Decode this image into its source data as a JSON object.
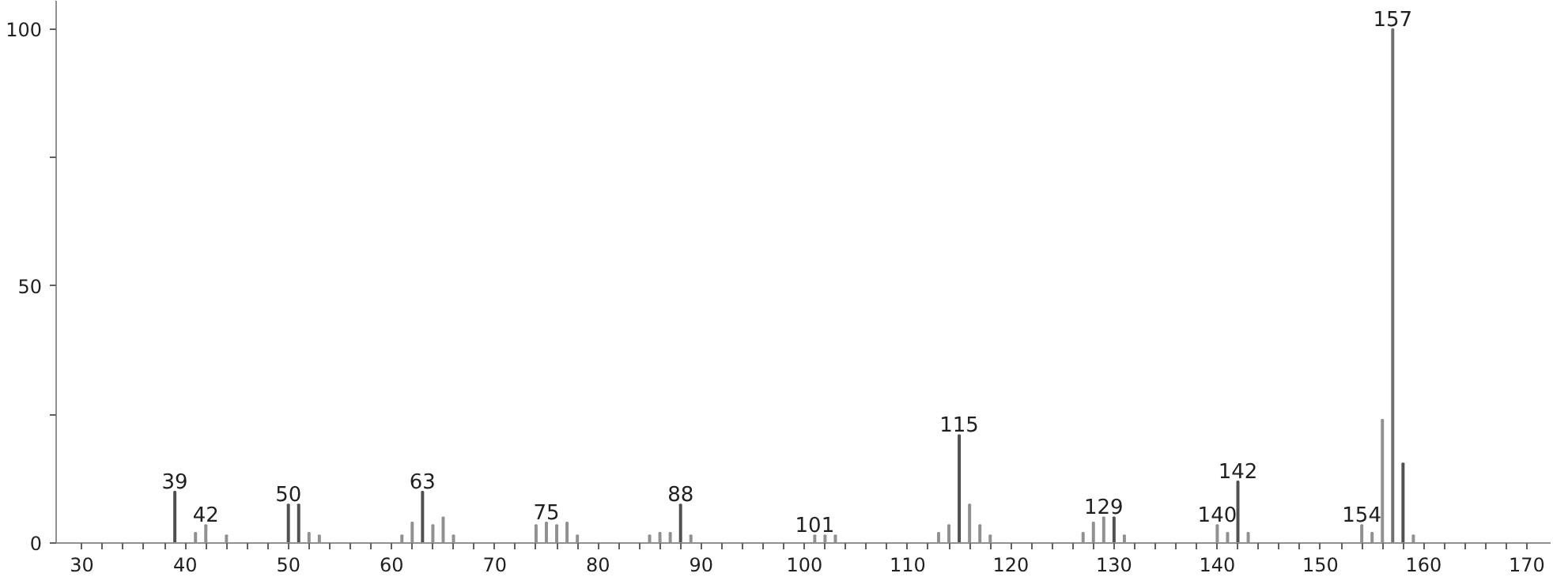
{
  "chart_data": {
    "type": "bar",
    "x": [
      39,
      41,
      42,
      44,
      50,
      51,
      52,
      53,
      61,
      62,
      63,
      64,
      65,
      66,
      74,
      75,
      76,
      77,
      78,
      85,
      86,
      87,
      88,
      89,
      101,
      102,
      103,
      113,
      114,
      115,
      116,
      117,
      118,
      127,
      128,
      129,
      130,
      131,
      140,
      141,
      142,
      143,
      154,
      155,
      156,
      157,
      158,
      159
    ],
    "values": [
      10,
      2,
      3.5,
      1.5,
      7.5,
      7.5,
      2,
      1.5,
      1.5,
      4,
      10,
      3.5,
      5,
      1.5,
      3.5,
      4,
      3.5,
      4,
      1.5,
      1.5,
      2,
      2,
      7.5,
      1.5,
      1.5,
      1.5,
      1.5,
      2,
      3.5,
      21,
      7.5,
      3.5,
      1.5,
      2,
      4,
      5,
      5,
      1.5,
      3.5,
      2,
      12,
      2,
      3.5,
      2,
      24,
      100,
      15.5,
      1.5
    ],
    "colors": [
      "#505050",
      "#909090",
      "#909090",
      "#909090",
      "#505050",
      "#505050",
      "#909090",
      "#909090",
      "#909090",
      "#909090",
      "#505050",
      "#909090",
      "#909090",
      "#909090",
      "#909090",
      "#909090",
      "#909090",
      "#909090",
      "#909090",
      "#909090",
      "#909090",
      "#909090",
      "#505050",
      "#909090",
      "#909090",
      "#909090",
      "#909090",
      "#909090",
      "#909090",
      "#505050",
      "#909090",
      "#909090",
      "#909090",
      "#909090",
      "#909090",
      "#909090",
      "#505050",
      "#909090",
      "#909090",
      "#909090",
      "#505050",
      "#909090",
      "#909090",
      "#909090",
      "#909090",
      "#707070",
      "#505050",
      "#909090"
    ],
    "xlim": [
      27.5,
      172.3
    ],
    "ylim": [
      0,
      105.5
    ],
    "xticks": [
      30,
      {
        "value": 32,
        "label": null
      },
      {
        "value": 34,
        "label": null
      },
      {
        "value": 36,
        "label": null
      },
      {
        "value": 38,
        "label": null
      },
      40,
      {
        "value": 42,
        "label": null
      },
      {
        "value": 44,
        "label": null
      },
      {
        "value": 46,
        "label": null
      },
      {
        "value": 48,
        "label": null
      },
      50,
      {
        "value": 52,
        "label": null
      },
      {
        "value": 54,
        "label": null
      },
      {
        "value": 56,
        "label": null
      },
      {
        "value": 58,
        "label": null
      },
      60,
      {
        "value": 62,
        "label": null
      },
      {
        "value": 64,
        "label": null
      },
      {
        "value": 66,
        "label": null
      },
      {
        "value": 68,
        "label": null
      },
      70,
      {
        "value": 72,
        "label": null
      },
      {
        "value": 74,
        "label": null
      },
      {
        "value": 76,
        "label": null
      },
      {
        "value": 78,
        "label": null
      },
      80,
      {
        "value": 82,
        "label": null
      },
      {
        "value": 84,
        "label": null
      },
      {
        "value": 86,
        "label": null
      },
      {
        "value": 88,
        "label": null
      },
      90,
      {
        "value": 92,
        "label": null
      },
      {
        "value": 94,
        "label": null
      },
      {
        "value": 96,
        "label": null
      },
      {
        "value": 98,
        "label": null
      },
      100,
      {
        "value": 102,
        "label": null
      },
      {
        "value": 104,
        "label": null
      },
      {
        "value": 106,
        "label": null
      },
      {
        "value": 108,
        "label": null
      },
      110,
      {
        "value": 112,
        "label": null
      },
      {
        "value": 114,
        "label": null
      },
      {
        "value": 116,
        "label": null
      },
      {
        "value": 118,
        "label": null
      },
      120,
      {
        "value": 122,
        "label": null
      },
      {
        "value": 124,
        "label": null
      },
      {
        "value": 126,
        "label": null
      },
      {
        "value": 128,
        "label": null
      },
      130,
      {
        "value": 132,
        "label": null
      },
      {
        "value": 134,
        "label": null
      },
      {
        "value": 136,
        "label": null
      },
      {
        "value": 138,
        "label": null
      },
      140,
      {
        "value": 142,
        "label": null
      },
      {
        "value": 144,
        "label": null
      },
      {
        "value": 146,
        "label": null
      },
      {
        "value": 148,
        "label": null
      },
      150,
      {
        "value": 152,
        "label": null
      },
      {
        "value": 154,
        "label": null
      },
      {
        "value": 156,
        "label": null
      },
      {
        "value": 158,
        "label": null
      },
      160,
      {
        "value": 162,
        "label": null
      },
      {
        "value": 164,
        "label": null
      },
      {
        "value": 166,
        "label": null
      },
      {
        "value": 168,
        "label": null
      },
      170
    ],
    "yticks": [
      0,
      {
        "value": 25,
        "label": null
      },
      50,
      {
        "value": 75,
        "label": null
      },
      100
    ],
    "grid": false,
    "annotations": [
      {
        "text": "39",
        "x": 39,
        "y": 10
      },
      {
        "text": "42",
        "x": 42,
        "y": 3.5
      },
      {
        "text": "50",
        "x": 50,
        "y": 7.5
      },
      {
        "text": "63",
        "x": 63,
        "y": 10
      },
      {
        "text": "75",
        "x": 75,
        "y": 4
      },
      {
        "text": "88",
        "x": 88,
        "y": 7.5
      },
      {
        "text": "101",
        "x": 101,
        "y": 1.5
      },
      {
        "text": "115",
        "x": 115,
        "y": 21
      },
      {
        "text": "129",
        "x": 129,
        "y": 5
      },
      {
        "text": "140",
        "x": 140,
        "y": 3.5
      },
      {
        "text": "142",
        "x": 142,
        "y": 12
      },
      {
        "text": "154",
        "x": 154,
        "y": 3.5
      },
      {
        "text": "157",
        "x": 157,
        "y": 100
      }
    ]
  }
}
